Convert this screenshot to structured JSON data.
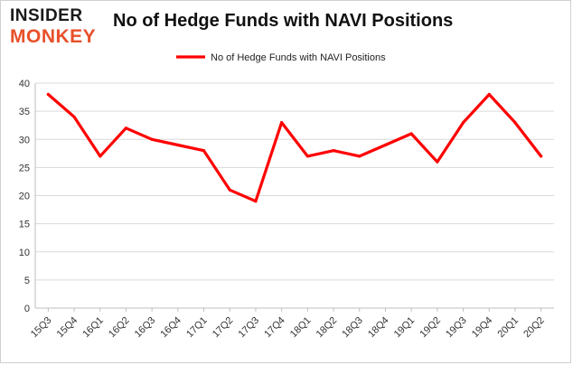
{
  "logo": {
    "line1": "INSIDER",
    "line2": "MONKEY"
  },
  "chart_data": {
    "type": "line",
    "title": "No of Hedge Funds with NAVI Positions",
    "xlabel": "",
    "ylabel": "",
    "categories": [
      "15Q3",
      "15Q4",
      "16Q1",
      "16Q2",
      "16Q3",
      "16Q4",
      "17Q1",
      "17Q2",
      "17Q3",
      "17Q4",
      "18Q1",
      "18Q2",
      "18Q3",
      "18Q4",
      "19Q1",
      "19Q2",
      "19Q3",
      "19Q4",
      "20Q1",
      "20Q2"
    ],
    "series": [
      {
        "name": "No of Hedge Funds with NAVI Positions",
        "color": "#ff0000",
        "values": [
          38,
          34,
          27,
          32,
          30,
          29,
          28,
          21,
          19,
          33,
          27,
          28,
          27,
          29,
          31,
          26,
          33,
          38,
          33,
          27
        ]
      }
    ],
    "ylim": [
      0,
      40
    ],
    "yticks": [
      "0",
      "5",
      "10",
      "15",
      "20",
      "25",
      "30",
      "35",
      "40"
    ],
    "grid": true,
    "legend": "top-center"
  }
}
